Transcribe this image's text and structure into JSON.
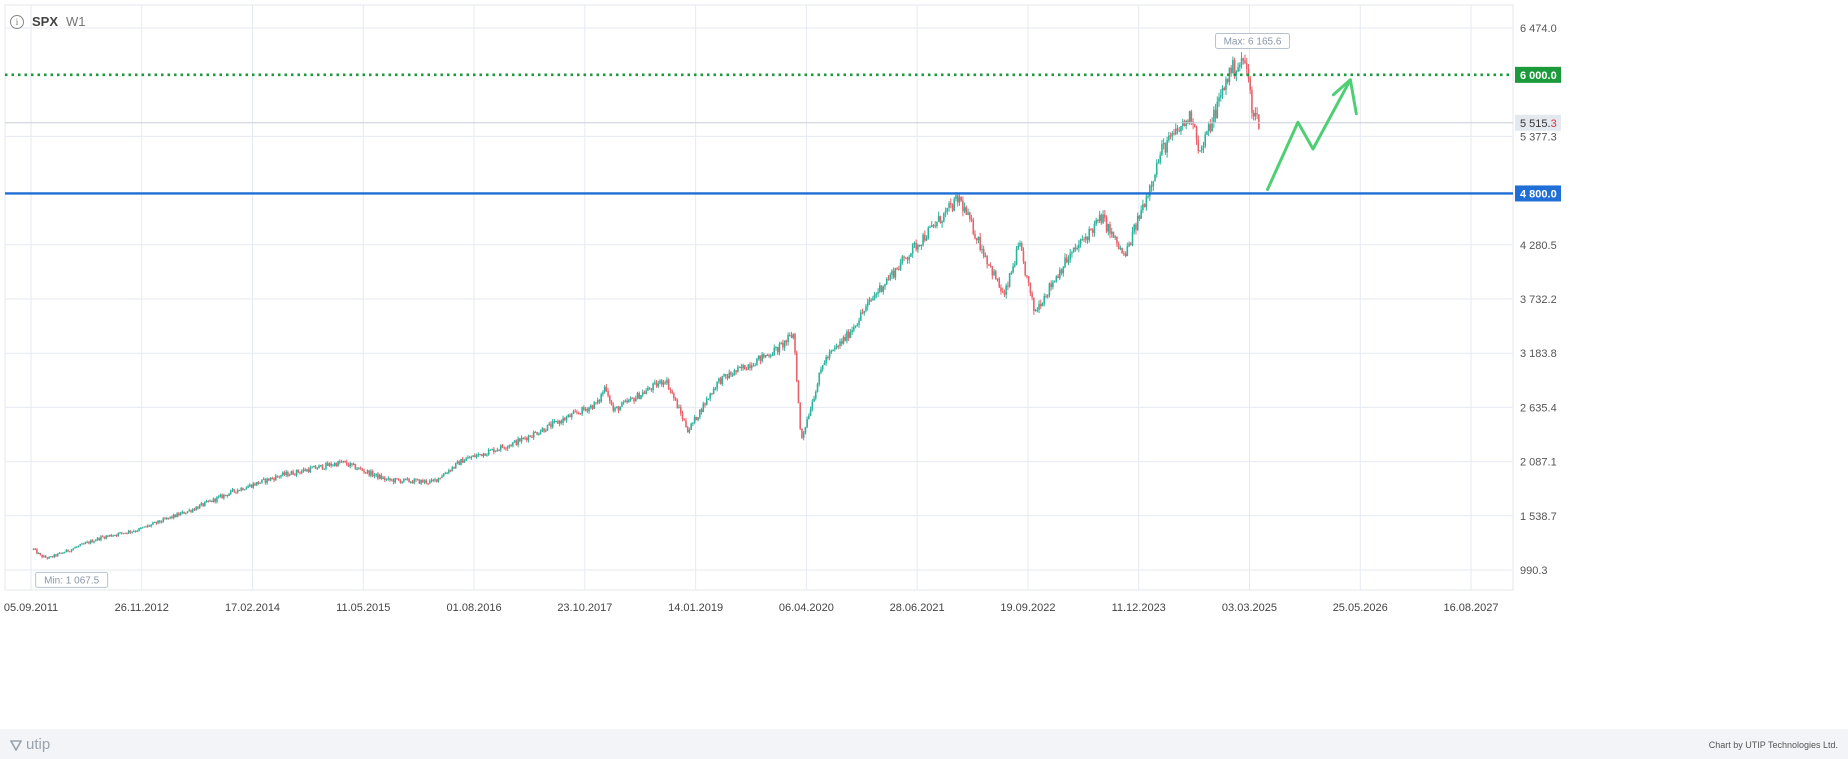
{
  "header": {
    "symbol": "SPX",
    "timeframe": "W1",
    "info_icon": "info-icon"
  },
  "footer": {
    "brand": "utip",
    "credit": "Chart by UTIP Technologies Ltd."
  },
  "chart_data": {
    "type": "candlestick",
    "symbol": "SPX",
    "timeframe": "W1",
    "y_ticks": [
      "6 474.0",
      "5 377.3",
      "4 280.5",
      "3 732.2",
      "3 183.8",
      "2 635.4",
      "2 087.1",
      "1 538.7",
      "990.3"
    ],
    "x_ticks": [
      "05.09.2011",
      "26.11.2012",
      "17.02.2014",
      "11.05.2015",
      "01.08.2016",
      "23.10.2017",
      "14.01.2019",
      "06.04.2020",
      "28.06.2021",
      "19.09.2022",
      "11.12.2023",
      "03.03.2025",
      "25.05.2026",
      "16.08.2027"
    ],
    "ylim": [
      990.3,
      6474.0
    ],
    "grid": true,
    "levels": [
      {
        "label": "6 000.0",
        "value": 6000.0,
        "color": "#1a9a3a",
        "style": "dotted"
      },
      {
        "label": "4 800.0",
        "value": 4800.0,
        "color": "#1f6fd6",
        "style": "solid"
      }
    ],
    "current_price": {
      "label": "5 515.",
      "label_tail": "3",
      "value": 5515.3
    },
    "max": {
      "label": "Max: 6 165.6",
      "value": 6165.6
    },
    "min": {
      "label": "Min: 1 067.5",
      "value": 1067.5
    },
    "series": [
      {
        "date": "2011-09",
        "value": 1200
      },
      {
        "date": "2011-10",
        "value": 1130
      },
      {
        "date": "2011-11",
        "value": 1110
      },
      {
        "date": "2012-06",
        "value": 1320
      },
      {
        "date": "2012-11",
        "value": 1400
      },
      {
        "date": "2013-06",
        "value": 1600
      },
      {
        "date": "2013-12",
        "value": 1800
      },
      {
        "date": "2014-06",
        "value": 1950
      },
      {
        "date": "2015-02",
        "value": 2080
      },
      {
        "date": "2015-08",
        "value": 1900
      },
      {
        "date": "2016-02",
        "value": 1880
      },
      {
        "date": "2016-06",
        "value": 2100
      },
      {
        "date": "2017-01",
        "value": 2280
      },
      {
        "date": "2017-12",
        "value": 2680
      },
      {
        "date": "2018-01",
        "value": 2860
      },
      {
        "date": "2018-02",
        "value": 2600
      },
      {
        "date": "2018-09",
        "value": 2920
      },
      {
        "date": "2018-12",
        "value": 2400
      },
      {
        "date": "2019-04",
        "value": 2900
      },
      {
        "date": "2019-12",
        "value": 3230
      },
      {
        "date": "2020-02",
        "value": 3380
      },
      {
        "date": "2020-03",
        "value": 2300
      },
      {
        "date": "2020-06",
        "value": 3100
      },
      {
        "date": "2020-09",
        "value": 3350
      },
      {
        "date": "2021-01",
        "value": 3800
      },
      {
        "date": "2021-06",
        "value": 4250
      },
      {
        "date": "2021-12",
        "value": 4750
      },
      {
        "date": "2022-06",
        "value": 3750
      },
      {
        "date": "2022-08",
        "value": 4280
      },
      {
        "date": "2022-10",
        "value": 3600
      },
      {
        "date": "2023-02",
        "value": 4100
      },
      {
        "date": "2023-07",
        "value": 4560
      },
      {
        "date": "2023-10",
        "value": 4150
      },
      {
        "date": "2024-01",
        "value": 4800
      },
      {
        "date": "2024-03",
        "value": 5250
      },
      {
        "date": "2024-07",
        "value": 5600
      },
      {
        "date": "2024-08",
        "value": 5200
      },
      {
        "date": "2024-12",
        "value": 6050
      },
      {
        "date": "2025-02",
        "value": 6140
      },
      {
        "date": "2025-03",
        "value": 5650
      },
      {
        "date": "2025-04",
        "value": 5500
      }
    ],
    "projection": [
      {
        "date": "2025-05",
        "value": 4840
      },
      {
        "date": "2025-09",
        "value": 5520
      },
      {
        "date": "2025-11",
        "value": 5250
      },
      {
        "date": "2026-04",
        "value": 5950
      }
    ]
  }
}
